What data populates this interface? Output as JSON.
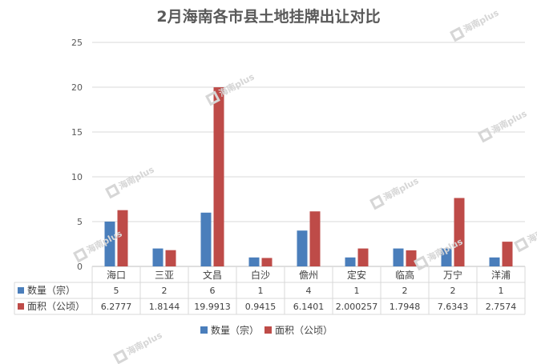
{
  "chart_data": {
    "type": "bar",
    "title": "2月海南各市县土地挂牌出让对比",
    "categories": [
      "海口",
      "三亚",
      "文昌",
      "白沙",
      "儋州",
      "定安",
      "临高",
      "万宁",
      "洋浦"
    ],
    "series": [
      {
        "name": "数量（宗）",
        "color": "#4a7ebb",
        "values": [
          5,
          2,
          6,
          1,
          4,
          1,
          2,
          2,
          1
        ],
        "labels": [
          "5",
          "2",
          "6",
          "1",
          "4",
          "1",
          "2",
          "2",
          "1"
        ]
      },
      {
        "name": "面积（公顷）",
        "color": "#be4b48",
        "values": [
          6.2777,
          1.8144,
          19.9913,
          0.9415,
          6.1401,
          2.000257,
          1.7948,
          7.6343,
          2.7574
        ],
        "labels": [
          "6.2777",
          "1.8144",
          "19.9913",
          "0.9415",
          "6.1401",
          "2.000257",
          "1.7948",
          "7.6343",
          "2.7574"
        ]
      }
    ],
    "ylim": [
      0,
      25
    ],
    "yticks": [
      "0",
      "5",
      "10",
      "15",
      "20",
      "25"
    ],
    "grid": true,
    "legend_position": "bottom-center",
    "data_table": true
  },
  "watermark": "海南plus"
}
